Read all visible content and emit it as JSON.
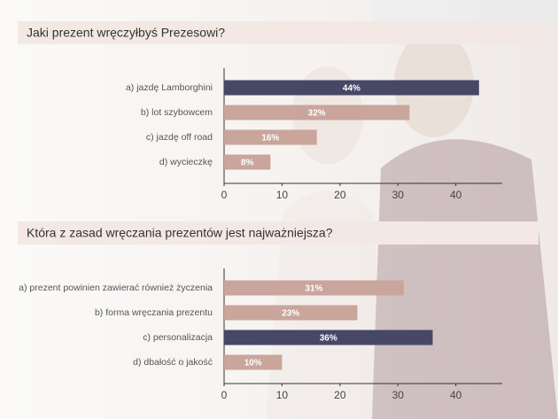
{
  "chart_data": [
    {
      "type": "bar",
      "orientation": "horizontal",
      "title": "Jaki prezent wręczyłbyś Prezesowi?",
      "categories": [
        "a)  jazdę Lamborghini",
        "b) lot szybowcem",
        "c) jazdę off road",
        "d) wycieczkę"
      ],
      "values": [
        44,
        32,
        16,
        8
      ],
      "value_labels": [
        "44%",
        "32%",
        "16%",
        "8%"
      ],
      "colors": [
        "#474766",
        "#c9a59c",
        "#c9a59c",
        "#c9a59c"
      ],
      "xlim": [
        0,
        48
      ],
      "xticks": [
        0,
        10,
        20,
        30,
        40
      ]
    },
    {
      "type": "bar",
      "orientation": "horizontal",
      "title": "Która z zasad wręczania prezentów jest najważniejsza?",
      "categories": [
        "a) prezent powinien zawierać również życzenia",
        "b) forma wręczania prezentu",
        "c) personalizacja",
        "d) dbałość o jakość"
      ],
      "values": [
        31,
        23,
        36,
        10
      ],
      "value_labels": [
        "31%",
        "23%",
        "36%",
        "10%"
      ],
      "colors": [
        "#c9a59c",
        "#c9a59c",
        "#474766",
        "#c9a59c"
      ],
      "xlim": [
        0,
        48
      ],
      "xticks": [
        0,
        10,
        20,
        30,
        40
      ]
    }
  ]
}
